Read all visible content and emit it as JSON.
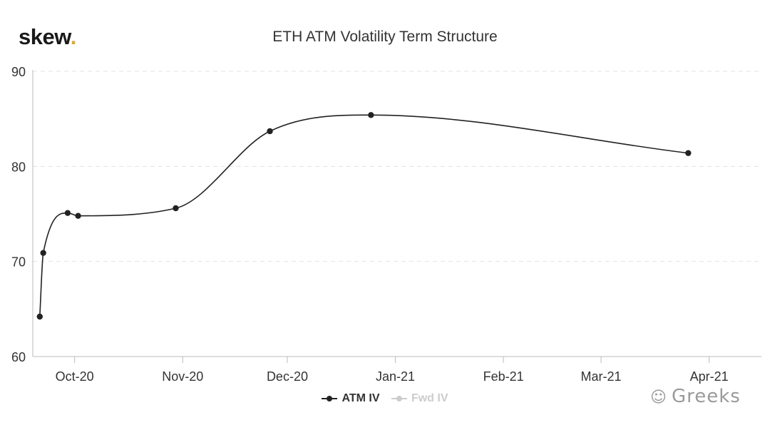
{
  "brand": {
    "logo_text": "skew",
    "logo_dot": "."
  },
  "watermark": {
    "icon": "wechat-icon",
    "text": "Greeks"
  },
  "chart_data": {
    "type": "line",
    "title": "ETH ATM Volatility Term Structure",
    "xlabel": "",
    "ylabel": "",
    "x_axis_type": "date",
    "xlim": [
      "2020-09-19",
      "2021-04-16"
    ],
    "ylim": [
      60,
      90
    ],
    "yticks": [
      60,
      70,
      80,
      90
    ],
    "xticks": [
      {
        "date": "2020-10-01",
        "label": "Oct-20"
      },
      {
        "date": "2020-11-01",
        "label": "Nov-20"
      },
      {
        "date": "2020-12-01",
        "label": "Dec-20"
      },
      {
        "date": "2021-01-01",
        "label": "Jan-21"
      },
      {
        "date": "2021-02-01",
        "label": "Feb-21"
      },
      {
        "date": "2021-03-01",
        "label": "Mar-21"
      },
      {
        "date": "2021-04-01",
        "label": "Apr-21"
      }
    ],
    "grid": "horizontal-dashed",
    "legend_position": "bottom-center",
    "series": [
      {
        "name": "ATM IV",
        "color": "#222222",
        "visible": true,
        "points": [
          {
            "x": "2020-09-21",
            "y": 64.2
          },
          {
            "x": "2020-09-22",
            "y": 70.9
          },
          {
            "x": "2020-09-29",
            "y": 75.1
          },
          {
            "x": "2020-10-02",
            "y": 74.8
          },
          {
            "x": "2020-10-30",
            "y": 75.6
          },
          {
            "x": "2020-11-26",
            "y": 83.7
          },
          {
            "x": "2020-12-25",
            "y": 85.4
          },
          {
            "x": "2021-03-26",
            "y": 81.4
          }
        ]
      },
      {
        "name": "Fwd IV",
        "color": "#cccccc",
        "visible": false,
        "points": []
      }
    ]
  }
}
